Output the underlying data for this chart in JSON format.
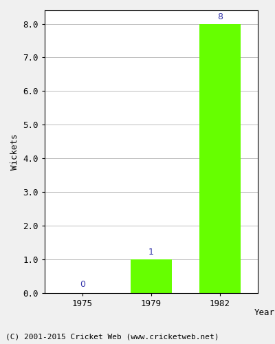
{
  "years": [
    "1975",
    "1979",
    "1982"
  ],
  "wickets": [
    0,
    1,
    8
  ],
  "bar_color": "#66ff00",
  "bar_edge_color": "#66ff00",
  "label_color": "#3333aa",
  "ylabel": "Wickets",
  "xlabel": "Year",
  "ylim": [
    0,
    8.4
  ],
  "yticks": [
    0.0,
    1.0,
    2.0,
    3.0,
    4.0,
    5.0,
    6.0,
    7.0,
    8.0
  ],
  "grid_color": "#bbbbbb",
  "footer": "(C) 2001-2015 Cricket Web (www.cricketweb.net)",
  "bar_width": 0.6,
  "fig_bg": "#f0f0f0",
  "plot_bg": "white",
  "spine_color": "#000000"
}
